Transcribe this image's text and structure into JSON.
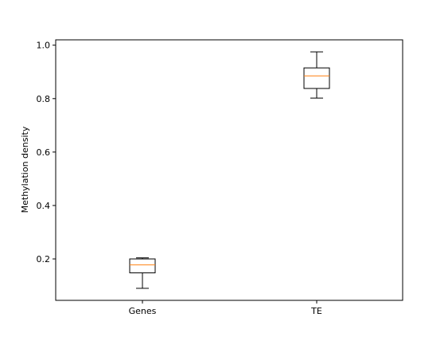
{
  "chart_data": {
    "type": "box",
    "ylabel": "Methylation density",
    "ylim": [
      0.045,
      1.02
    ],
    "yticks": [
      {
        "value": 0.2,
        "label": "0.2"
      },
      {
        "value": 0.4,
        "label": "0.4"
      },
      {
        "value": 0.6,
        "label": "0.6"
      },
      {
        "value": 0.8,
        "label": "0.8"
      },
      {
        "value": 1.0,
        "label": "1.0"
      }
    ],
    "categories": [
      "Genes",
      "TE"
    ],
    "boxes": [
      {
        "category": "Genes",
        "whisker_low": 0.09,
        "q1": 0.148,
        "median": 0.178,
        "q3": 0.2,
        "whisker_high": 0.204
      },
      {
        "category": "TE",
        "whisker_low": 0.802,
        "q1": 0.838,
        "median": 0.885,
        "q3": 0.915,
        "whisker_high": 0.975
      }
    ],
    "grid": false,
    "colors": {
      "box": "#000000",
      "median": "#ff7f0e",
      "axis": "#000000"
    }
  }
}
